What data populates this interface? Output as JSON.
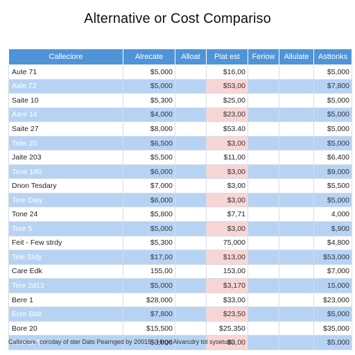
{
  "title": "Alternative or Cost Compariso",
  "headers": [
    "Calleciore",
    "Alrecate",
    "Alloat",
    "Piat est",
    "Feriow",
    "Allulate",
    "Asttonks"
  ],
  "rows": [
    {
      "name": "Aute 71",
      "c1": "$5,000",
      "c2": "",
      "c3": "$16,00",
      "c4": "",
      "c5": "",
      "c6": "$5,000",
      "pink": false
    },
    {
      "name": "Aale 72",
      "c1": "$5,000",
      "c2": "",
      "c3": "$53,00",
      "c4": "",
      "c5": "",
      "c6": "$7,800",
      "pink": true
    },
    {
      "name": "Saite 10",
      "c1": "$5,300",
      "c2": "",
      "c3": "$25,00",
      "c4": "",
      "c5": "",
      "c6": "$5,000",
      "pink": false
    },
    {
      "name": "Aare 14",
      "c1": "$4,000",
      "c2": "",
      "c3": "$23,00",
      "c4": "",
      "c5": "",
      "c6": "$5,000",
      "pink": true
    },
    {
      "name": "Saite 27",
      "c1": "$8,000",
      "c2": "",
      "c3": "$53.40",
      "c4": "",
      "c5": "",
      "c6": "$5,000",
      "pink": false
    },
    {
      "name": "Teile 20",
      "c1": "$6,500",
      "c2": "",
      "c3": "$3,00",
      "c4": "",
      "c5": "",
      "c6": "$5,000",
      "pink": true
    },
    {
      "name": "Jaite 203",
      "c1": "$5,500",
      "c2": "",
      "c3": "$11,00",
      "c4": "",
      "c5": "",
      "c6": "$6,400",
      "pink": false
    },
    {
      "name": "Tene 180",
      "c1": "$6,000",
      "c2": "",
      "c3": "$3,00",
      "c4": "",
      "c5": "",
      "c6": "$9,000",
      "pink": true
    },
    {
      "name": "Dnon Tesdary",
      "c1": "$7,000",
      "c2": "",
      "c3": "$3,00",
      "c4": "",
      "c5": "",
      "c6": "$5,500",
      "pink": false
    },
    {
      "name": "Tere Daly",
      "c1": "$6,000",
      "c2": "",
      "c3": "$3,00",
      "c4": "",
      "c5": "",
      "c6": "$5,000",
      "pink": true
    },
    {
      "name": "Tone 24",
      "c1": "$5,800",
      "c2": "",
      "c3": "$7,71",
      "c4": "",
      "c5": "",
      "c6": "4,000",
      "pink": false
    },
    {
      "name": "Tore 5",
      "c1": "$5,000",
      "c2": "",
      "c3": "$3,00",
      "c4": "",
      "c5": "",
      "c6": "$,900",
      "pink": true
    },
    {
      "name": "Feit - Few strdy",
      "c1": "$5,300",
      "c2": "",
      "c3": "75,000",
      "c4": "",
      "c5": "",
      "c6": "$4,800",
      "pink": false
    },
    {
      "name": "Tele Stdy",
      "c1": "$17,00",
      "c2": "",
      "c3": "$13,00",
      "c4": "",
      "c5": "",
      "c6": "$53,000",
      "pink": true
    },
    {
      "name": "Care Edk",
      "c1": "155,00",
      "c2": "",
      "c3": "153,00",
      "c4": "",
      "c5": "",
      "c6": "$7,000",
      "pink": false
    },
    {
      "name": "Tere 2d13",
      "c1": "$5,000",
      "c2": "",
      "c3": "$3,170",
      "c4": "",
      "c5": "",
      "c6": "15,000",
      "pink": true
    },
    {
      "name": "Bere 1",
      "c1": "$28,000",
      "c2": "",
      "c3": "$33,00",
      "c4": "",
      "c5": "",
      "c6": "$23,000",
      "pink": false
    },
    {
      "name": "Ecre Bstt",
      "c1": "$7,800",
      "c2": "",
      "c3": "$23,50",
      "c4": "",
      "c5": "",
      "c6": "$5,000",
      "pink": true
    },
    {
      "name": "Bore 20",
      "c1": "$15,500",
      "c2": "",
      "c3": "$25,350",
      "c4": "",
      "c5": "",
      "c6": "$35,000",
      "pink": false
    },
    {
      "name": "Tore 2d3",
      "c1": "$3,000",
      "c2": "",
      "c3": "$3,00",
      "c4": "",
      "c5": "",
      "c6": "$5,000",
      "pink": true
    }
  ],
  "footnote": "Calleciore, corcday of ster Dats Pearnged by 20015 - Hirge Alvarcdry tot sysetuat."
}
